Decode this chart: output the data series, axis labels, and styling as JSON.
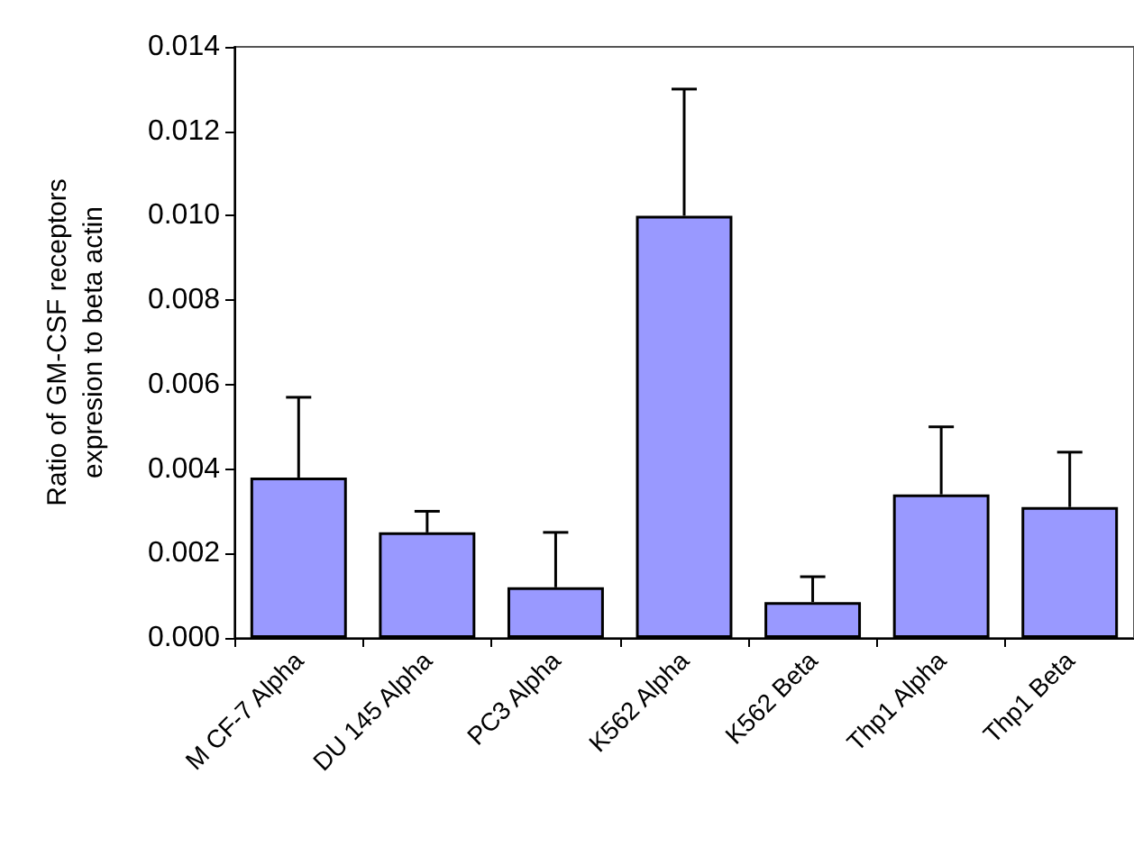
{
  "chart_data": {
    "type": "bar",
    "ylabel": "Ratio of GM-CSF receptors\nexpresion to beta actin",
    "categories": [
      "M CF-7 Alpha",
      "DU 145 Alpha",
      "PC3 Alpha",
      "K562 Alpha",
      "K562 Beta",
      "Thp1 Alpha",
      "Thp1 Beta"
    ],
    "values": [
      0.0038,
      0.0025,
      0.0012,
      0.01,
      0.00085,
      0.0034,
      0.0031
    ],
    "errors": [
      [
        0.0038,
        0.0057
      ],
      [
        0.0025,
        0.003
      ],
      [
        0.0012,
        0.0025
      ],
      [
        0.01,
        0.013
      ],
      [
        0.00085,
        0.00145
      ],
      [
        0.0034,
        0.005
      ],
      [
        0.0031,
        0.0044
      ]
    ],
    "color": "#9999ff",
    "ylim": [
      0,
      0.014
    ],
    "yticks": [
      {
        "value": 0,
        "label": "0.000"
      },
      0.002,
      0.004,
      0.006,
      0.008,
      {
        "value": 0.01,
        "label": "0.010"
      },
      0.012,
      0.014
    ],
    "grid": false
  }
}
